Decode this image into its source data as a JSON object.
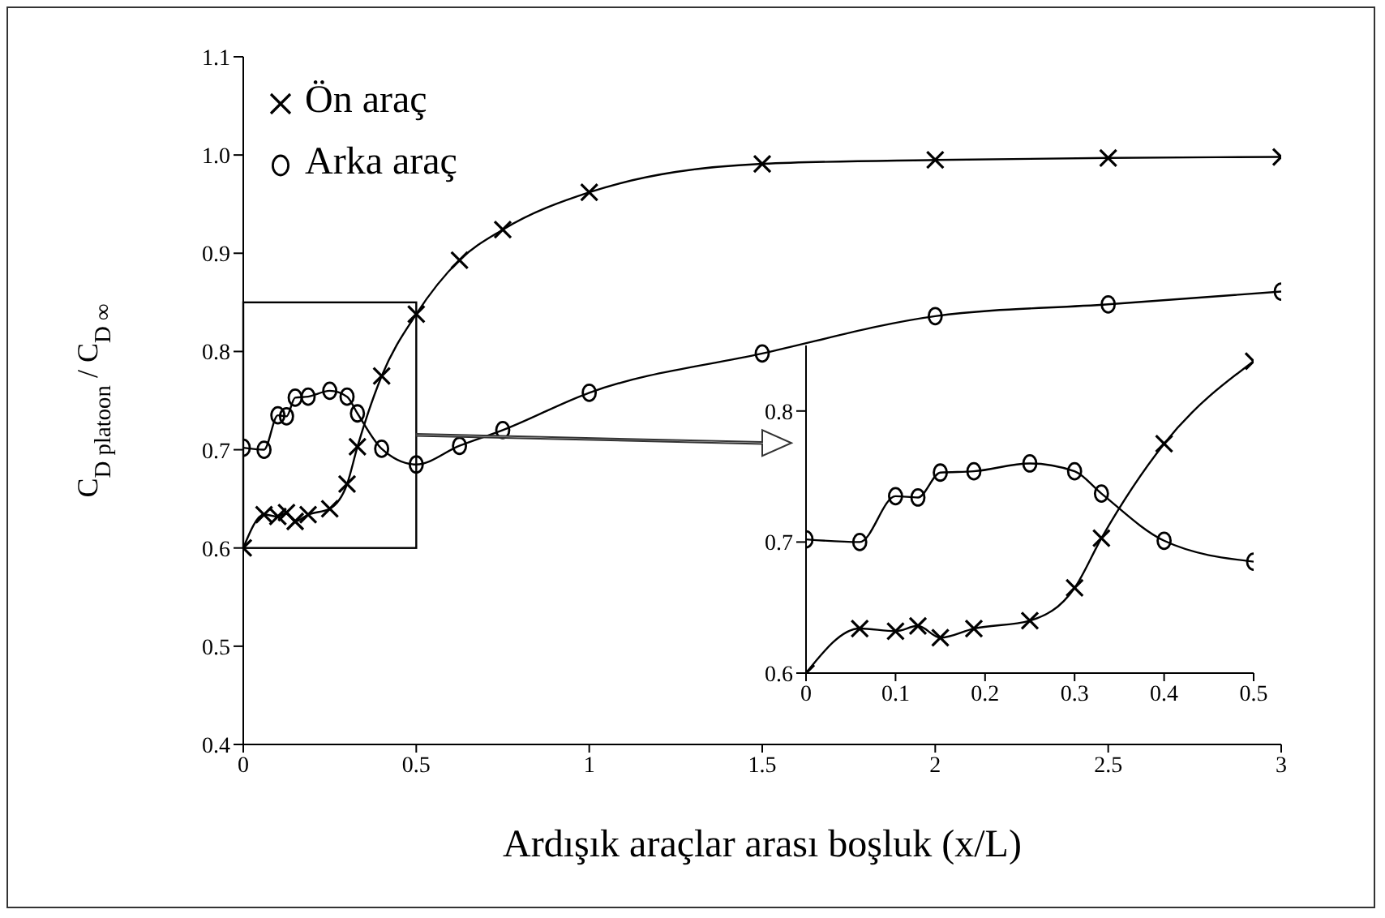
{
  "chart_data": [
    {
      "type": "line",
      "xlabel": "Ardışık araçlar arası boşluk (x/L)",
      "ylabel": "C$_{D platoon}$ / C$_{D ∞}$",
      "x": [
        0,
        0.06,
        0.1,
        0.125,
        0.15,
        0.1875,
        0.25,
        0.3,
        0.33,
        0.4,
        0.5,
        0.625,
        0.75,
        1,
        1.5,
        2,
        2.5,
        3
      ],
      "series": [
        {
          "name": "Ön araç",
          "color": "#000000",
          "marker": "cross",
          "values": [
            0.6,
            0.634,
            0.632,
            0.636,
            0.627,
            0.634,
            0.64,
            0.665,
            0.703,
            0.775,
            0.838,
            0.893,
            0.924,
            0.962,
            0.991,
            0.995,
            0.997,
            0.998
          ]
        },
        {
          "name": "Arka araç",
          "color": "#000000",
          "marker": "circle",
          "values": [
            0.702,
            0.7,
            0.735,
            0.734,
            0.753,
            0.754,
            0.76,
            0.754,
            0.737,
            0.701,
            0.685,
            0.704,
            0.72,
            0.758,
            0.798,
            0.836,
            0.848,
            0.861
          ]
        }
      ],
      "xlim": [
        0,
        3
      ],
      "xticks": [
        0,
        0.5,
        1,
        1.5,
        2,
        2.5,
        3
      ],
      "ylim": [
        0.4,
        1.1
      ],
      "yticks": [
        0.4,
        0.5,
        0.6,
        0.7,
        0.8,
        0.9,
        {
          "value": 1,
          "label": "1.0"
        },
        1.1
      ],
      "grid": false,
      "legend": "top left",
      "line_style": "solid"
    },
    {
      "type": "line",
      "x": [
        0,
        0.06,
        0.1,
        0.125,
        0.15,
        0.1875,
        0.25,
        0.3,
        0.33,
        0.4,
        0.5
      ],
      "series": [
        {
          "color": "#000000",
          "marker": "cross",
          "values": [
            0.6,
            0.634,
            0.632,
            0.636,
            0.627,
            0.634,
            0.64,
            0.665,
            0.703,
            0.775,
            0.838
          ]
        },
        {
          "color": "#000000",
          "marker": "circle",
          "values": [
            0.702,
            0.7,
            0.735,
            0.734,
            0.753,
            0.754,
            0.76,
            0.754,
            0.737,
            0.701,
            0.685
          ]
        }
      ],
      "xlim": [
        0,
        0.5
      ],
      "xticks": [
        0,
        0.1,
        0.2,
        0.3,
        0.4,
        0.5
      ],
      "ylim": [
        0.6,
        0.85
      ],
      "yticks": [
        0.6,
        0.7,
        0.8
      ],
      "grid": false,
      "legend": false,
      "line_style": "solid"
    }
  ]
}
